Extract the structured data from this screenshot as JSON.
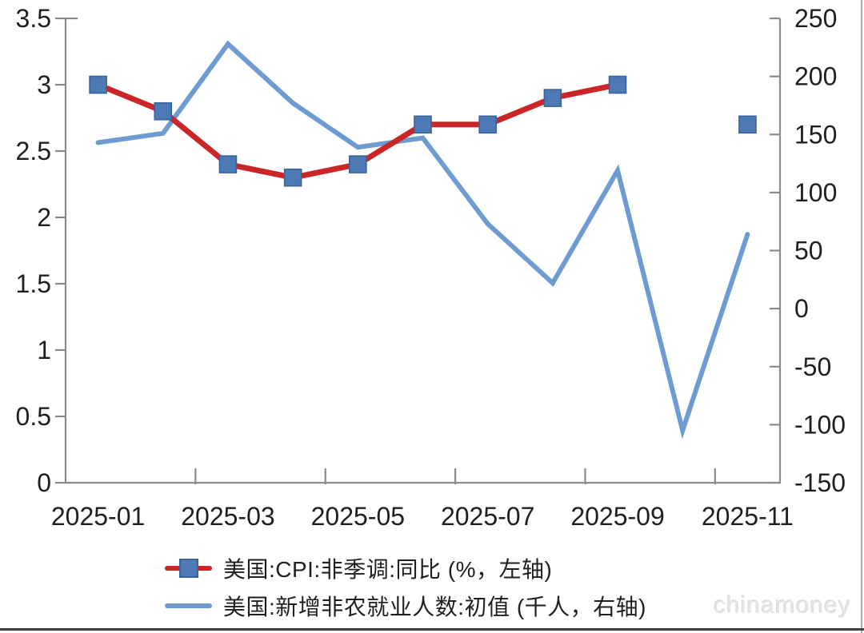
{
  "chart_data": {
    "type": "line",
    "title": "",
    "xlabel": "",
    "categories": [
      "2025-01",
      "2025-02",
      "2025-03",
      "2025-04",
      "2025-05",
      "2025-06",
      "2025-07",
      "2025-08",
      "2025-09",
      "2025-10",
      "2025-11"
    ],
    "x_tick_labels": [
      "2025-01",
      "2025-03",
      "2025-05",
      "2025-07",
      "2025-09",
      "2025-11"
    ],
    "series": [
      {
        "name": "美国:CPI:非季调:同比 (%，左轴)",
        "axis": "left",
        "style": "line-with-square-markers",
        "color": "#cb2627",
        "marker_color": "#4d79b5",
        "marker_edge_color": "#3a639c",
        "values": [
          3.0,
          2.8,
          2.4,
          2.3,
          2.4,
          2.7,
          2.7,
          2.9,
          3.0,
          null,
          2.7
        ]
      },
      {
        "name": "美国:新增非农就业人数:初值 (千人，右轴)",
        "axis": "right",
        "style": "line",
        "color": "#6f9bd3",
        "values": [
          143,
          151,
          228,
          177,
          139,
          147,
          73,
          22,
          119,
          -105,
          64
        ]
      }
    ],
    "left_axis": {
      "min": 0,
      "max": 3.5,
      "step": 0.5,
      "tick_labels": [
        "3.5",
        "3",
        "2.5",
        "2",
        "1.5",
        "1",
        "0.5",
        "0"
      ]
    },
    "right_axis": {
      "min": -150,
      "max": 250,
      "step": 50,
      "tick_labels": [
        "250",
        "200",
        "150",
        "100",
        "50",
        "0",
        "-50",
        "-100",
        "-150"
      ]
    },
    "grid": false,
    "legend_position": "bottom"
  },
  "legend": {
    "items": [
      {
        "label": "美国:CPI:非季调:同比 (%，左轴)"
      },
      {
        "label": "美国:新增非农就业人数:初值 (千人，右轴)"
      }
    ]
  },
  "watermark": "chinamoney",
  "colors": {
    "background": "#ffffff",
    "axis": "#8a8a8a",
    "text": "#1f1f1f",
    "cpi_line": "#cb2627",
    "marker_fill": "#4d79b5",
    "marker_edge": "#3a639c",
    "payroll_line": "#6f9bd3",
    "watermark": "#e4e4e4",
    "bottom_bar": "#3f3f3f",
    "right_edge": "#ababab"
  }
}
